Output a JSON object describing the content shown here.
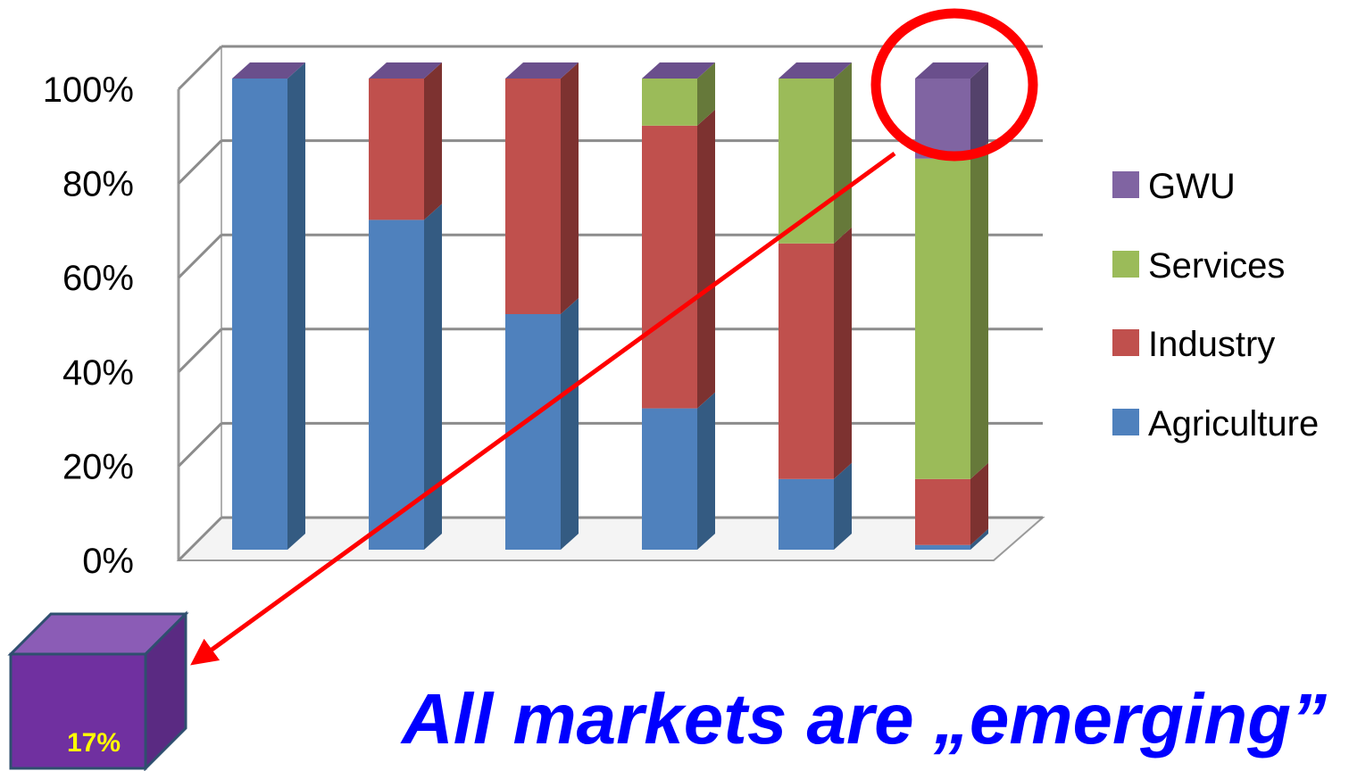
{
  "chart_data": {
    "type": "bar",
    "stacked": true,
    "percent_stacked": true,
    "three_d": true,
    "categories": [
      "",
      "",
      "",
      "",
      "",
      ""
    ],
    "series": [
      {
        "name": "Agriculture",
        "values": [
          100,
          70,
          50,
          30,
          15,
          1
        ],
        "color": "#4f81bd",
        "side": "#345b82",
        "top": "#6f9bd2"
      },
      {
        "name": "Industry",
        "values": [
          0,
          30,
          50,
          60,
          50,
          14
        ],
        "color": "#c0504d",
        "side": "#7d3230",
        "top": "#d36e6b"
      },
      {
        "name": "Services",
        "values": [
          0,
          0,
          0,
          10,
          35,
          68
        ],
        "color": "#9bbb59",
        "side": "#66793a",
        "top": "#b5d07a"
      },
      {
        "name": "GWU",
        "values": [
          0,
          0,
          0,
          0,
          0,
          17
        ],
        "color": "#8064a2",
        "side": "#54426b",
        "top": "#9a80bb"
      }
    ],
    "yticks": [
      "0%",
      "20%",
      "40%",
      "60%",
      "80%",
      "100%"
    ],
    "ylim": [
      0,
      100
    ],
    "legend": "right",
    "grid": true,
    "title": "",
    "xlabel": "",
    "ylabel": ""
  },
  "callout": {
    "value_label": "17%",
    "highlight_color": "#ff0000",
    "cube_color": "#7030a0"
  },
  "caption": "All markets are „emerging”"
}
